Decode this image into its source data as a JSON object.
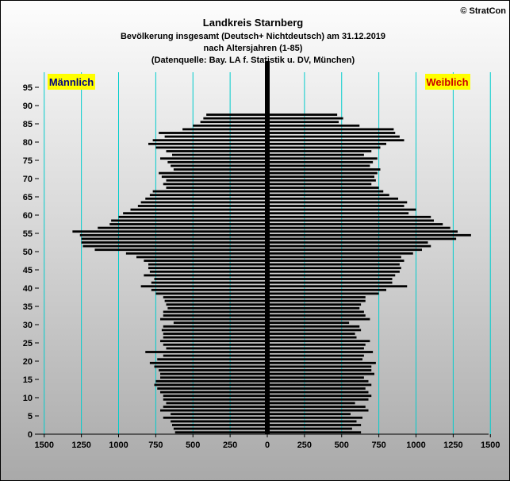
{
  "copyright": "© StratCon",
  "title_lines": [
    "Landkreis Starnberg",
    "Bevölkerung  insgesamt (Deutsch+ Nichtdeutsch) am 31.12.2019",
    "nach Altersjahren (1-85)",
    "(Datenquelle: Bay. LA f. Statistik u. DV, München)"
  ],
  "chart_data": {
    "type": "bar",
    "orientation": "horizontal-population-pyramid",
    "legend": {
      "left": "Männlich",
      "right": "Weiblich"
    },
    "x_ticks": [
      1500,
      1250,
      1000,
      750,
      500,
      250,
      0,
      250,
      500,
      750,
      1000,
      1250,
      1500
    ],
    "y_ticks": [
      0,
      5,
      10,
      15,
      20,
      25,
      30,
      35,
      40,
      45,
      50,
      55,
      60,
      65,
      70,
      75,
      80,
      85,
      90,
      95
    ],
    "xlim": [
      -1500,
      1500
    ],
    "ylim": [
      0,
      98
    ],
    "grid": "vertical",
    "ages": [
      0,
      1,
      2,
      3,
      4,
      5,
      6,
      7,
      8,
      9,
      10,
      11,
      12,
      13,
      14,
      15,
      16,
      17,
      18,
      19,
      20,
      21,
      22,
      23,
      24,
      25,
      26,
      27,
      28,
      29,
      30,
      31,
      32,
      33,
      34,
      35,
      36,
      37,
      38,
      39,
      40,
      41,
      42,
      43,
      44,
      45,
      46,
      47,
      48,
      49,
      50,
      51,
      52,
      53,
      54,
      55,
      56,
      57,
      58,
      59,
      60,
      61,
      62,
      63,
      64,
      65,
      66,
      67,
      68,
      69,
      70,
      71,
      72,
      73,
      74,
      75,
      76,
      77,
      78,
      79,
      80,
      81,
      82,
      83,
      84,
      85,
      86,
      87,
      88
    ],
    "series": [
      {
        "name": "Männlich",
        "values": [
          620,
          630,
          640,
          650,
          700,
          650,
          720,
          700,
          680,
          700,
          700,
          720,
          740,
          760,
          750,
          720,
          720,
          730,
          760,
          790,
          740,
          700,
          820,
          680,
          700,
          720,
          700,
          700,
          710,
          700,
          630,
          720,
          700,
          700,
          670,
          680,
          690,
          700,
          750,
          780,
          850,
          780,
          760,
          830,
          790,
          800,
          800,
          830,
          880,
          950,
          1160,
          1240,
          1250,
          1250,
          1260,
          1310,
          1140,
          1060,
          1050,
          1000,
          970,
          920,
          870,
          850,
          820,
          790,
          770,
          680,
          700,
          680,
          710,
          730,
          630,
          650,
          670,
          720,
          640,
          680,
          750,
          800,
          770,
          690,
          730,
          570,
          500,
          450,
          430,
          410,
          0
        ],
        "color": "#000000"
      },
      {
        "name": "Weiblich",
        "values": [
          630,
          570,
          630,
          600,
          640,
          560,
          680,
          660,
          590,
          680,
          700,
          680,
          660,
          700,
          680,
          650,
          720,
          700,
          700,
          730,
          640,
          650,
          710,
          650,
          660,
          690,
          600,
          590,
          630,
          620,
          550,
          690,
          660,
          650,
          620,
          630,
          660,
          660,
          750,
          800,
          940,
          840,
          840,
          860,
          890,
          900,
          890,
          920,
          900,
          980,
          1040,
          1100,
          1080,
          1270,
          1370,
          1280,
          1230,
          1180,
          1120,
          1100,
          950,
          1000,
          920,
          940,
          880,
          820,
          780,
          750,
          700,
          730,
          720,
          740,
          760,
          690,
          710,
          740,
          650,
          700,
          760,
          800,
          920,
          890,
          860,
          850,
          620,
          480,
          510,
          470,
          0
        ],
        "color": "#000000"
      }
    ]
  }
}
